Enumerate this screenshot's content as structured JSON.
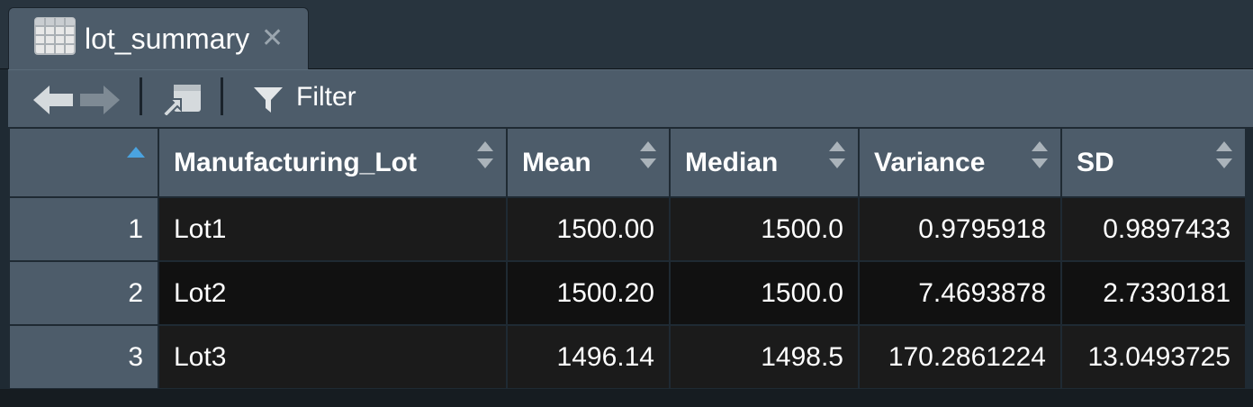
{
  "tab": {
    "title": "lot_summary",
    "close_glyph": "✕",
    "icon": "table-grid-icon"
  },
  "toolbar": {
    "back_icon": "arrow-left-icon",
    "forward_icon": "arrow-right-icon",
    "popout_icon": "popout-window-icon",
    "filter_icon": "funnel-icon",
    "filter_label": "Filter"
  },
  "table": {
    "columns": [
      "Manufacturing_Lot",
      "Mean",
      "Median",
      "Variance",
      "SD"
    ],
    "rows": [
      {
        "index": "1",
        "cells": [
          "Lot1",
          "1500.00",
          "1500.0",
          "0.9795918",
          "0.9897433"
        ]
      },
      {
        "index": "2",
        "cells": [
          "Lot2",
          "1500.20",
          "1500.0",
          "7.4693878",
          "2.7330181"
        ]
      },
      {
        "index": "3",
        "cells": [
          "Lot3",
          "1496.14",
          "1498.5",
          "170.2861224",
          "13.0493725"
        ]
      }
    ],
    "sort_column": "row-index",
    "sort_direction": "ascending"
  },
  "colors": {
    "panel": "#4d5c6a",
    "background": "#1f2a33",
    "cell_dark": "#111111",
    "cell_alt": "#1b1b1b",
    "sort_accent": "#4aa3e0"
  }
}
